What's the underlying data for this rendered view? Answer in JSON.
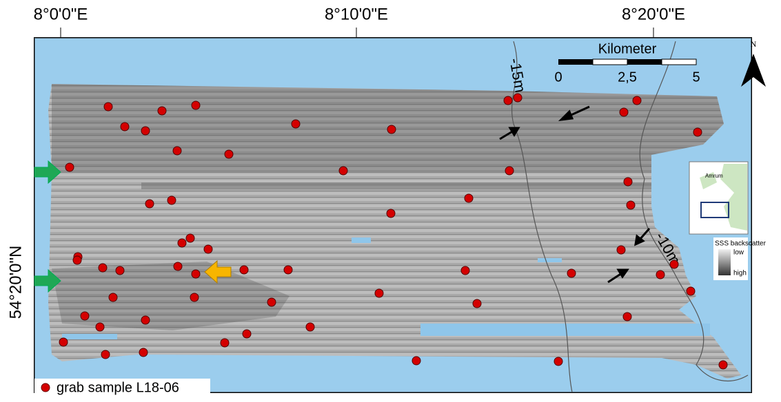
{
  "map": {
    "top_labels": [
      "8°0'0\"E",
      "8°10'0\"E",
      "8°20'0\"E"
    ],
    "left_label": "54°20'0\"N",
    "contours": [
      "-15m",
      "-10m"
    ],
    "scale_bar": {
      "title": "Kilometer",
      "ticks": [
        "0",
        "2,5",
        "5"
      ]
    },
    "north": "N",
    "inset": {
      "label": "Amrum",
      "legend_title": "SSS backscatter",
      "low": "low",
      "high": "high"
    },
    "legend": "grab sample L18-06"
  }
}
